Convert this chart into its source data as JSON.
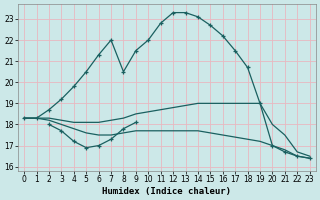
{
  "xlabel": "Humidex (Indice chaleur)",
  "xlim": [
    -0.5,
    23.5
  ],
  "ylim": [
    15.8,
    23.7
  ],
  "yticks": [
    16,
    17,
    18,
    19,
    20,
    21,
    22,
    23
  ],
  "xticks": [
    0,
    1,
    2,
    3,
    4,
    5,
    6,
    7,
    8,
    9,
    10,
    11,
    12,
    13,
    14,
    15,
    16,
    17,
    18,
    19,
    20,
    21,
    22,
    23
  ],
  "bg_color": "#cce8e8",
  "grid_color": "#e8b8c0",
  "line_color": "#1a6060",
  "curves": [
    {
      "x": [
        0,
        1,
        2,
        3,
        4,
        5,
        6,
        7,
        8,
        9,
        10,
        11,
        12,
        13,
        14,
        15,
        16,
        17,
        18,
        19,
        20,
        21,
        22,
        23
      ],
      "y": [
        18.3,
        18.3,
        18.7,
        19.2,
        19.8,
        20.5,
        21.3,
        22.0,
        20.5,
        21.5,
        22.0,
        22.8,
        23.3,
        23.3,
        23.1,
        22.7,
        22.2,
        21.5,
        20.7,
        19.0,
        17.0,
        16.7,
        16.5,
        16.4
      ],
      "markers": true
    },
    {
      "x": [
        0,
        1,
        2,
        3,
        4,
        5,
        6,
        7,
        8,
        9,
        10,
        11,
        12,
        13,
        14,
        15,
        16,
        17,
        18,
        19,
        20,
        21,
        22,
        23
      ],
      "y": [
        18.3,
        18.3,
        18.3,
        18.2,
        18.1,
        18.1,
        18.1,
        18.2,
        18.3,
        18.5,
        18.6,
        18.7,
        18.8,
        18.9,
        19.0,
        19.0,
        19.0,
        19.0,
        19.0,
        19.0,
        18.0,
        17.5,
        16.7,
        16.5
      ],
      "markers": false
    },
    {
      "x": [
        0,
        1,
        2,
        3,
        4,
        5,
        6,
        7,
        8,
        9,
        10,
        11,
        12,
        13,
        14,
        15,
        16,
        17,
        18,
        19,
        20,
        21,
        22,
        23
      ],
      "y": [
        18.3,
        18.3,
        18.2,
        18.0,
        17.8,
        17.6,
        17.5,
        17.5,
        17.6,
        17.7,
        17.7,
        17.7,
        17.7,
        17.7,
        17.7,
        17.6,
        17.5,
        17.4,
        17.3,
        17.2,
        17.0,
        16.8,
        16.5,
        16.4
      ],
      "markers": false
    },
    {
      "x": [
        2,
        3,
        4,
        5,
        6,
        7,
        8,
        9
      ],
      "y": [
        18.0,
        17.7,
        17.2,
        16.9,
        17.0,
        17.3,
        17.8,
        18.1
      ],
      "markers": true
    }
  ]
}
